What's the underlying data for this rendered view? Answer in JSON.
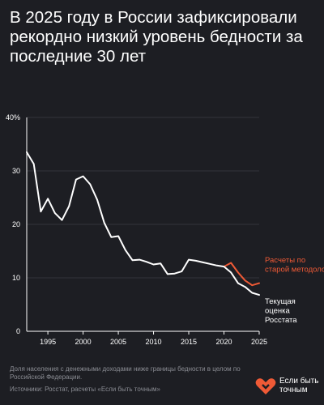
{
  "header": {
    "title": "В 2025 году в России зафиксировали рекордно низкий уровень бедности за последние 30 лет"
  },
  "footer": {
    "note": "Доля населения с денежными доходами ниже границы бедности в целом по Российской Федерации.",
    "source": "Источники: Росстат, расчеты «Если быть точным»",
    "logo_text_1": "Если быть",
    "logo_text_2": "точным"
  },
  "colors": {
    "background": "#1d1e23",
    "current_series": "#ffffff",
    "old_method_series": "#ef5a36",
    "axis": "#ffffff",
    "grid": "#3a3c44",
    "muted_text": "#8b8d94"
  },
  "icons": {
    "logo": "heart-icon"
  },
  "chart_data": {
    "type": "line",
    "title": "",
    "xlabel": "",
    "ylabel": "",
    "xlim": [
      1992,
      2025
    ],
    "ylim": [
      0,
      40
    ],
    "x_ticks": [
      "1995",
      "2000",
      "2005",
      "2010",
      "2015",
      "2020",
      "2025"
    ],
    "y_ticks": [
      "0",
      "10",
      "20",
      "30",
      "40%"
    ],
    "grid": true,
    "series": [
      {
        "name": "Текущая оценка Росстата",
        "color": "#ffffff",
        "x": [
          1992,
          1993,
          1994,
          1995,
          1996,
          1997,
          1998,
          1999,
          2000,
          2001,
          2002,
          2003,
          2004,
          2005,
          2006,
          2007,
          2008,
          2009,
          2010,
          2011,
          2012,
          2013,
          2014,
          2015,
          2016,
          2017,
          2018,
          2019,
          2020,
          2021,
          2022,
          2023,
          2024,
          2025
        ],
        "y": [
          33.5,
          31.3,
          22.4,
          24.8,
          22.1,
          20.8,
          23.4,
          28.4,
          29.0,
          27.5,
          24.6,
          20.3,
          17.6,
          17.8,
          15.2,
          13.3,
          13.4,
          13.0,
          12.5,
          12.7,
          10.7,
          10.8,
          11.2,
          13.4,
          13.2,
          12.9,
          12.6,
          12.3,
          12.1,
          11.0,
          9.0,
          8.3,
          7.2,
          6.8
        ]
      },
      {
        "name": "Расчеты по старой методологии",
        "color": "#ef5a36",
        "x": [
          2020,
          2021,
          2022,
          2023,
          2024,
          2025
        ],
        "y": [
          12.1,
          12.8,
          11.0,
          9.5,
          8.6,
          9.0
        ]
      }
    ]
  }
}
